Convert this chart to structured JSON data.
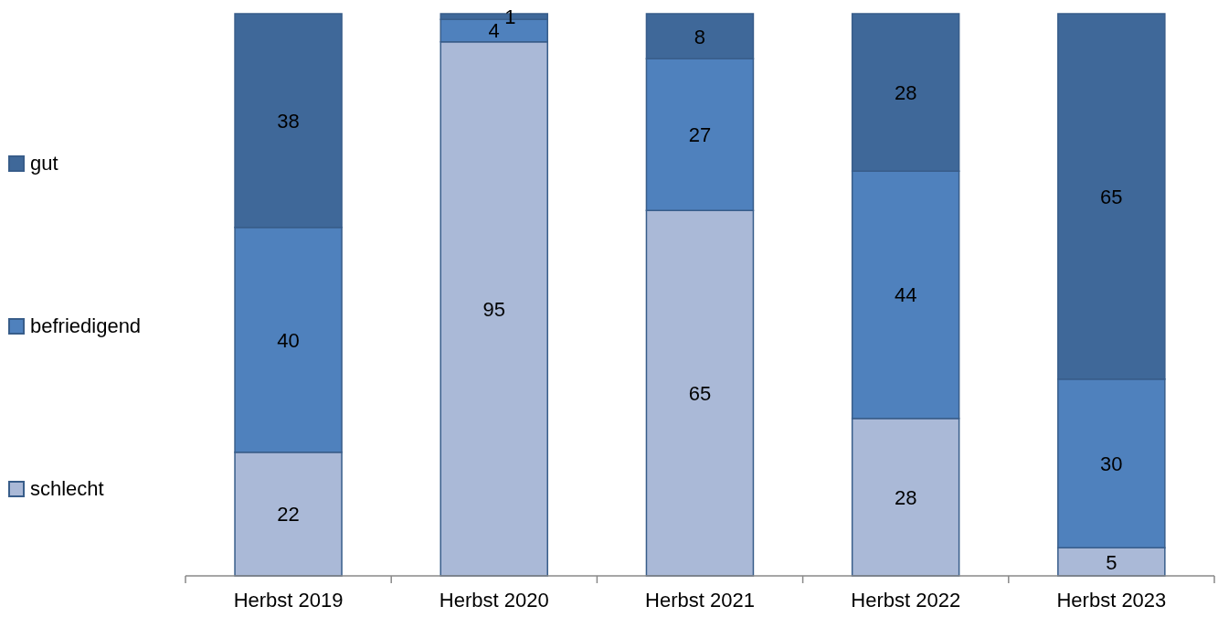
{
  "chart_data": {
    "type": "bar",
    "categories": [
      "Herbst 2019",
      "Herbst 2020",
      "Herbst 2021",
      "Herbst 2022",
      "Herbst 2023"
    ],
    "series": [
      {
        "name": "schlecht",
        "color": "#aab9d7",
        "values": [
          22,
          95,
          65,
          28,
          5
        ]
      },
      {
        "name": "befriedigend",
        "color": "#4f81bd",
        "values": [
          40,
          4,
          27,
          44,
          30
        ]
      },
      {
        "name": "gut",
        "color": "#3f6899",
        "values": [
          38,
          1,
          8,
          28,
          65
        ]
      }
    ],
    "stacked": true,
    "data_labels": true,
    "legend": "left"
  }
}
